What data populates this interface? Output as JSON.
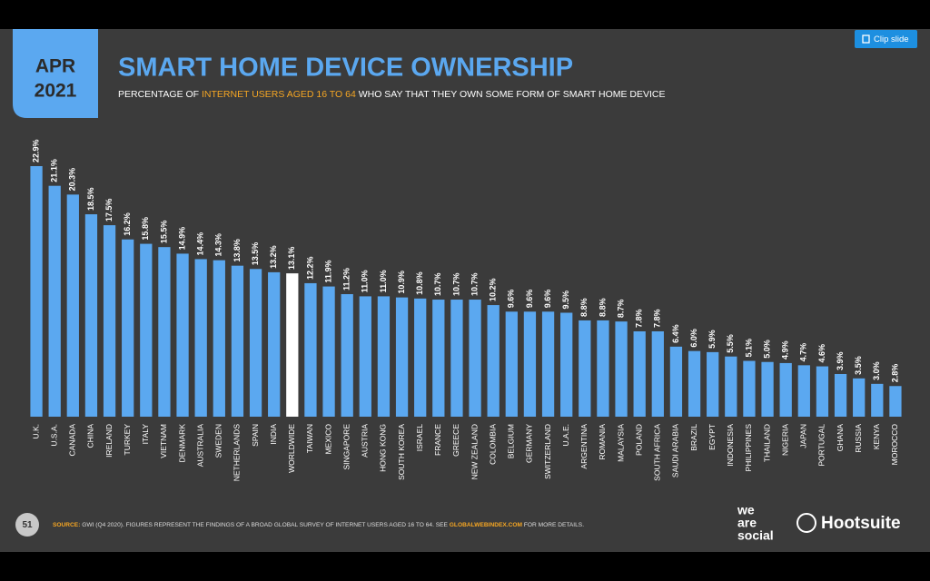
{
  "badge": {
    "month": "APR",
    "year": "2021"
  },
  "clip_button": "Clip slide",
  "page_number": "51",
  "subtitle_parts": [
    "PERCENTAGE OF ",
    "INTERNET USERS AGED 16 TO 64",
    " WHO SAY THAT THEY OWN SOME FORM OF SMART HOME DEVICE"
  ],
  "source_parts": [
    "SOURCE:",
    " GWI (Q4 2020). FIGURES REPRESENT THE FINDINGS OF A BROAD GLOBAL SURVEY OF INTERNET USERS AGED 16 TO 64. SEE ",
    "GLOBALWEBINDEX.COM",
    " FOR MORE DETAILS."
  ],
  "logos": {
    "we": "we",
    "are": "are",
    "social": "social",
    "hootsuite": "Hootsuite"
  },
  "chart_data": {
    "type": "bar",
    "title": "SMART HOME DEVICE OWNERSHIP",
    "categories": [
      "U.K.",
      "U.S.A.",
      "CANADA",
      "CHINA",
      "IRELAND",
      "TURKEY",
      "ITALY",
      "VIETNAM",
      "DENMARK",
      "AUSTRALIA",
      "SWEDEN",
      "NETHERLANDS",
      "SPAIN",
      "INDIA",
      "WORLDWIDE",
      "TAIWAN",
      "MEXICO",
      "SINGAPORE",
      "AUSTRIA",
      "HONG KONG",
      "SOUTH KOREA",
      "ISRAEL",
      "FRANCE",
      "GREECE",
      "NEW ZEALAND",
      "COLOMBIA",
      "BELGIUM",
      "GERMANY",
      "SWITZERLAND",
      "U.A.E.",
      "ARGENTINA",
      "ROMANIA",
      "MALAYSIA",
      "POLAND",
      "SOUTH AFRICA",
      "SAUDI ARABIA",
      "BRAZIL",
      "EGYPT",
      "INDONESIA",
      "PHILIPPINES",
      "THAILAND",
      "NIGERIA",
      "JAPAN",
      "PORTUGAL",
      "GHANA",
      "RUSSIA",
      "KENYA",
      "MOROCCO"
    ],
    "values": [
      22.9,
      21.1,
      20.3,
      18.5,
      17.5,
      16.2,
      15.8,
      15.5,
      14.9,
      14.4,
      14.3,
      13.8,
      13.5,
      13.2,
      13.1,
      12.2,
      11.9,
      11.2,
      11.0,
      11.0,
      10.9,
      10.8,
      10.7,
      10.7,
      10.7,
      10.2,
      9.6,
      9.6,
      9.6,
      9.5,
      8.8,
      8.8,
      8.7,
      7.8,
      7.8,
      6.4,
      6.0,
      5.9,
      5.5,
      5.1,
      5.0,
      4.9,
      4.7,
      4.6,
      3.9,
      3.5,
      3.0,
      2.8
    ],
    "value_labels": [
      "22.9%",
      "21.1%",
      "20.3%",
      "18.5%",
      "17.5%",
      "16.2%",
      "15.8%",
      "15.5%",
      "14.9%",
      "14.4%",
      "14.3%",
      "13.8%",
      "13.5%",
      "13.2%",
      "13.1%",
      "12.2%",
      "11.9%",
      "11.2%",
      "11.0%",
      "11.0%",
      "10.9%",
      "10.8%",
      "10.7%",
      "10.7%",
      "10.7%",
      "10.2%",
      "9.6%",
      "9.6%",
      "9.6%",
      "9.5%",
      "8.8%",
      "8.8%",
      "8.7%",
      "7.8%",
      "7.8%",
      "6.4%",
      "6.0%",
      "5.9%",
      "5.5%",
      "5.1%",
      "5.0%",
      "4.9%",
      "4.7%",
      "4.6%",
      "3.9%",
      "3.5%",
      "3.0%",
      "2.8%"
    ],
    "colors": [
      "#5ba8f0",
      "#5ba8f0",
      "#5ba8f0",
      "#5ba8f0",
      "#5ba8f0",
      "#5ba8f0",
      "#5ba8f0",
      "#5ba8f0",
      "#5ba8f0",
      "#5ba8f0",
      "#5ba8f0",
      "#5ba8f0",
      "#5ba8f0",
      "#5ba8f0",
      "#ffffff",
      "#5ba8f0",
      "#5ba8f0",
      "#5ba8f0",
      "#5ba8f0",
      "#5ba8f0",
      "#5ba8f0",
      "#5ba8f0",
      "#5ba8f0",
      "#5ba8f0",
      "#5ba8f0",
      "#5ba8f0",
      "#5ba8f0",
      "#5ba8f0",
      "#5ba8f0",
      "#5ba8f0",
      "#5ba8f0",
      "#5ba8f0",
      "#5ba8f0",
      "#5ba8f0",
      "#5ba8f0",
      "#5ba8f0",
      "#5ba8f0",
      "#5ba8f0",
      "#5ba8f0",
      "#5ba8f0",
      "#5ba8f0",
      "#5ba8f0",
      "#5ba8f0",
      "#5ba8f0",
      "#5ba8f0",
      "#5ba8f0",
      "#5ba8f0",
      "#5ba8f0"
    ]
  }
}
